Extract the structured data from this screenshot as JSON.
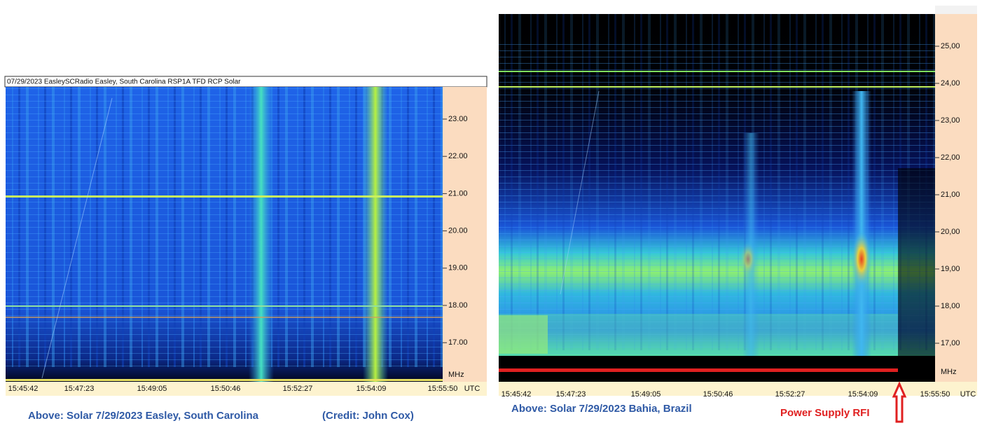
{
  "left_panel": {
    "header": "07/29/2023 EasleySCRadio Easley, South Carolina RSP1A TFD RCP Solar",
    "yticks": [
      "23.00",
      "22.00",
      "21.00",
      "20.00",
      "19.00",
      "18.00",
      "17.00"
    ],
    "y_unit": "MHz",
    "xticks": [
      "15:45:42",
      "15:47:23",
      "15:49:05",
      "15:50:46",
      "15:52:27",
      "15:54:09",
      "15:55:50"
    ],
    "x_unit": "UTC",
    "caption": "Above: Solar 7/29/2023 Easley, South Carolina",
    "credit": "(Credit: John Cox)"
  },
  "right_panel": {
    "yticks": [
      "25,00",
      "24,00",
      "23,00",
      "22,00",
      "21,00",
      "20,00",
      "19,00",
      "18,00",
      "17,00"
    ],
    "y_unit": "MHz",
    "xticks": [
      "15:45:42",
      "15:47:23",
      "15:49:05",
      "15:50:46",
      "15:52:27",
      "15:54:09",
      "15:55:50"
    ],
    "x_unit": "UTC",
    "caption": "Above: Solar 7/29/2023 Bahia, Brazil",
    "annotation": "Power Supply RFI"
  }
}
